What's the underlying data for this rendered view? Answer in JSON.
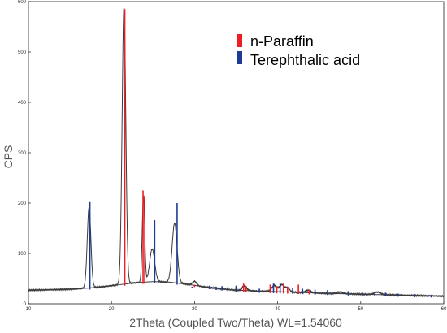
{
  "chart_data": {
    "type": "line",
    "title": "",
    "xlabel": "2Theta (Coupled Two/Theta) WL=1.54060",
    "ylabel": "CPS",
    "xlim": [
      10,
      60
    ],
    "ylim": [
      0,
      600
    ],
    "x_ticks": [
      10,
      20,
      30,
      40,
      50,
      60
    ],
    "y_ticks": [
      0,
      100,
      200,
      300,
      400,
      500,
      600
    ],
    "grid": false,
    "legend_position": "top-right",
    "background_curve": {
      "points": [
        [
          10,
          27
        ],
        [
          13,
          28
        ],
        [
          15,
          29
        ],
        [
          17,
          31
        ],
        [
          19,
          34
        ],
        [
          21,
          38
        ],
        [
          23,
          42
        ],
        [
          25,
          44
        ],
        [
          27,
          43
        ],
        [
          29,
          39
        ],
        [
          31,
          34
        ],
        [
          33,
          30
        ],
        [
          35,
          27
        ],
        [
          38,
          25
        ],
        [
          42,
          23
        ],
        [
          45,
          21
        ],
        [
          50,
          19
        ],
        [
          55,
          17
        ],
        [
          60,
          15
        ]
      ]
    },
    "peaks": [
      {
        "x": 17.3,
        "height": 160,
        "width": 0.22
      },
      {
        "x": 21.5,
        "height": 550,
        "width": 0.22
      },
      {
        "x": 23.85,
        "height": 170,
        "width": 0.15
      },
      {
        "x": 24.9,
        "height": 65,
        "width": 0.3
      },
      {
        "x": 27.6,
        "height": 118,
        "width": 0.3
      },
      {
        "x": 30.0,
        "height": 8,
        "width": 0.25
      },
      {
        "x": 36.0,
        "height": 10,
        "width": 0.25
      },
      {
        "x": 39.6,
        "height": 12,
        "width": 0.3
      },
      {
        "x": 40.5,
        "height": 14,
        "width": 0.3
      },
      {
        "x": 41.2,
        "height": 8,
        "width": 0.25
      },
      {
        "x": 43.7,
        "height": 5,
        "width": 0.3
      },
      {
        "x": 47.5,
        "height": 3,
        "width": 0.4
      },
      {
        "x": 52.0,
        "height": 5,
        "width": 0.4
      }
    ],
    "series": [
      {
        "name": "n-Paraffin",
        "color": "#ee1c24",
        "sticks": [
          {
            "x": 21.6,
            "y": 585
          },
          {
            "x": 23.8,
            "y": 225
          },
          {
            "x": 24.0,
            "y": 215
          },
          {
            "x": 30.0,
            "y": 38
          },
          {
            "x": 35.9,
            "y": 40
          },
          {
            "x": 36.2,
            "y": 34
          },
          {
            "x": 39.1,
            "y": 38
          },
          {
            "x": 39.9,
            "y": 35
          },
          {
            "x": 40.7,
            "y": 40
          },
          {
            "x": 41.2,
            "y": 34
          },
          {
            "x": 42.5,
            "y": 38
          },
          {
            "x": 43.8,
            "y": 28
          }
        ]
      },
      {
        "name": "Terephthalic acid",
        "color": "#1f3a93",
        "sticks": [
          {
            "x": 17.4,
            "y": 202
          },
          {
            "x": 25.2,
            "y": 166
          },
          {
            "x": 27.9,
            "y": 200
          },
          {
            "x": 29.7,
            "y": 32
          },
          {
            "x": 31.8,
            "y": 36
          },
          {
            "x": 32.6,
            "y": 34
          },
          {
            "x": 33.3,
            "y": 35
          },
          {
            "x": 34.0,
            "y": 33
          },
          {
            "x": 35.0,
            "y": 36
          },
          {
            "x": 37.8,
            "y": 30
          },
          {
            "x": 39.5,
            "y": 40
          },
          {
            "x": 40.3,
            "y": 42
          },
          {
            "x": 41.8,
            "y": 32
          },
          {
            "x": 43.0,
            "y": 30
          },
          {
            "x": 44.5,
            "y": 28
          },
          {
            "x": 46.0,
            "y": 27
          },
          {
            "x": 48.5,
            "y": 25
          },
          {
            "x": 50.2,
            "y": 22
          },
          {
            "x": 51.7,
            "y": 24
          },
          {
            "x": 53.0,
            "y": 22
          },
          {
            "x": 54.5,
            "y": 20
          },
          {
            "x": 56.5,
            "y": 19
          },
          {
            "x": 58.5,
            "y": 18
          }
        ]
      }
    ],
    "pattern_color": "#3a3a3a"
  }
}
